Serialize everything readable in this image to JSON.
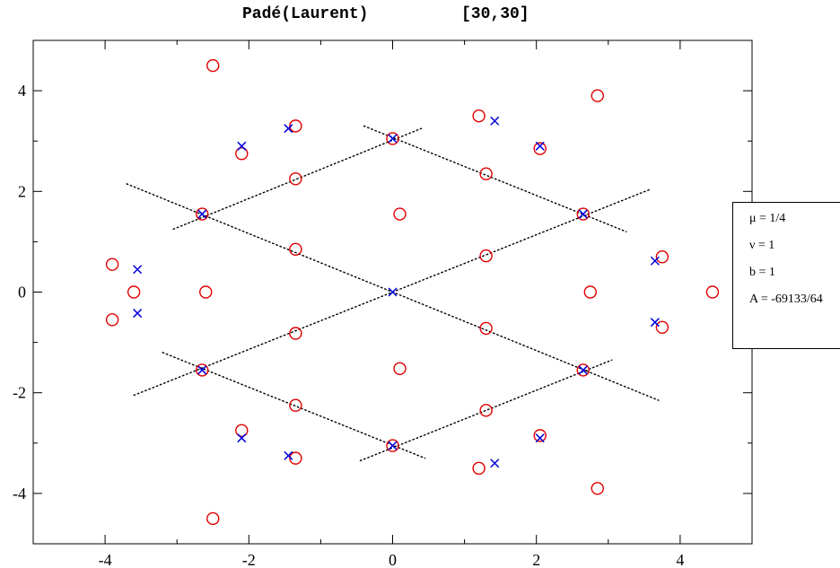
{
  "chart_data": {
    "type": "scatter",
    "title": "Padé(Laurent)",
    "title_suffix": "[30,30]",
    "xlabel": "",
    "ylabel": "",
    "xlim": [
      -5,
      5
    ],
    "ylim": [
      -5,
      5
    ],
    "xticks": [
      -4,
      -2,
      0,
      2,
      4
    ],
    "yticks": [
      -4,
      -2,
      0,
      2,
      4
    ],
    "grid": false,
    "legend": {
      "placement": "right",
      "entries": [
        "μ = 1/4",
        "ν = 1",
        "b = 1",
        "A = -69133/64"
      ]
    },
    "series": [
      {
        "marker": "circle",
        "color": "#e00000",
        "points": [
          [
            -2.5,
            4.5
          ],
          [
            -2.1,
            2.75
          ],
          [
            -1.35,
            3.3
          ],
          [
            -1.35,
            2.25
          ],
          [
            -2.65,
            1.55
          ],
          [
            0.0,
            3.05
          ],
          [
            0.1,
            1.55
          ],
          [
            1.2,
            3.5
          ],
          [
            1.3,
            2.35
          ],
          [
            2.05,
            2.85
          ],
          [
            2.85,
            3.9
          ],
          [
            2.65,
            1.55
          ],
          [
            -3.9,
            0.55
          ],
          [
            -3.6,
            0.0
          ],
          [
            -3.9,
            -0.55
          ],
          [
            -2.6,
            0.0
          ],
          [
            -1.35,
            0.85
          ],
          [
            1.3,
            0.72
          ],
          [
            2.75,
            0.0
          ],
          [
            3.75,
            0.7
          ],
          [
            4.45,
            0.0
          ],
          [
            3.75,
            -0.7
          ],
          [
            -1.35,
            -0.82
          ],
          [
            1.3,
            -0.72
          ],
          [
            -2.65,
            -1.55
          ],
          [
            0.1,
            -1.52
          ],
          [
            2.65,
            -1.55
          ],
          [
            -2.1,
            -2.75
          ],
          [
            -1.35,
            -2.25
          ],
          [
            1.3,
            -2.35
          ],
          [
            0.0,
            -3.05
          ],
          [
            2.05,
            -2.85
          ],
          [
            -1.35,
            -3.3
          ],
          [
            1.2,
            -3.5
          ],
          [
            -2.5,
            -4.5
          ],
          [
            2.85,
            -3.9
          ]
        ]
      },
      {
        "marker": "cross",
        "color": "#0000e0",
        "points": [
          [
            -2.1,
            2.9
          ],
          [
            -1.45,
            3.25
          ],
          [
            0.0,
            3.05
          ],
          [
            1.42,
            3.4
          ],
          [
            2.05,
            2.9
          ],
          [
            -2.65,
            1.55
          ],
          [
            2.65,
            1.55
          ],
          [
            -3.55,
            0.45
          ],
          [
            -3.55,
            -0.42
          ],
          [
            0.0,
            0.0
          ],
          [
            3.65,
            0.62
          ],
          [
            3.65,
            -0.6
          ],
          [
            -2.65,
            -1.55
          ],
          [
            2.65,
            -1.55
          ],
          [
            -2.1,
            -2.9
          ],
          [
            -1.45,
            -3.25
          ],
          [
            0.0,
            -3.05
          ],
          [
            1.42,
            -3.4
          ],
          [
            2.05,
            -2.9
          ]
        ]
      }
    ],
    "dotted_lines": [
      [
        [
          -3.7,
          2.15
        ],
        [
          3.7,
          -2.15
        ]
      ],
      [
        [
          -3.6,
          -2.05
        ],
        [
          3.6,
          2.05
        ]
      ],
      [
        [
          -0.4,
          3.3
        ],
        [
          3.25,
          1.2
        ]
      ],
      [
        [
          -3.05,
          1.25
        ],
        [
          0.4,
          3.25
        ]
      ],
      [
        [
          -3.2,
          -1.2
        ],
        [
          0.45,
          -3.3
        ]
      ],
      [
        [
          -0.45,
          -3.35
        ],
        [
          3.05,
          -1.35
        ]
      ]
    ]
  }
}
